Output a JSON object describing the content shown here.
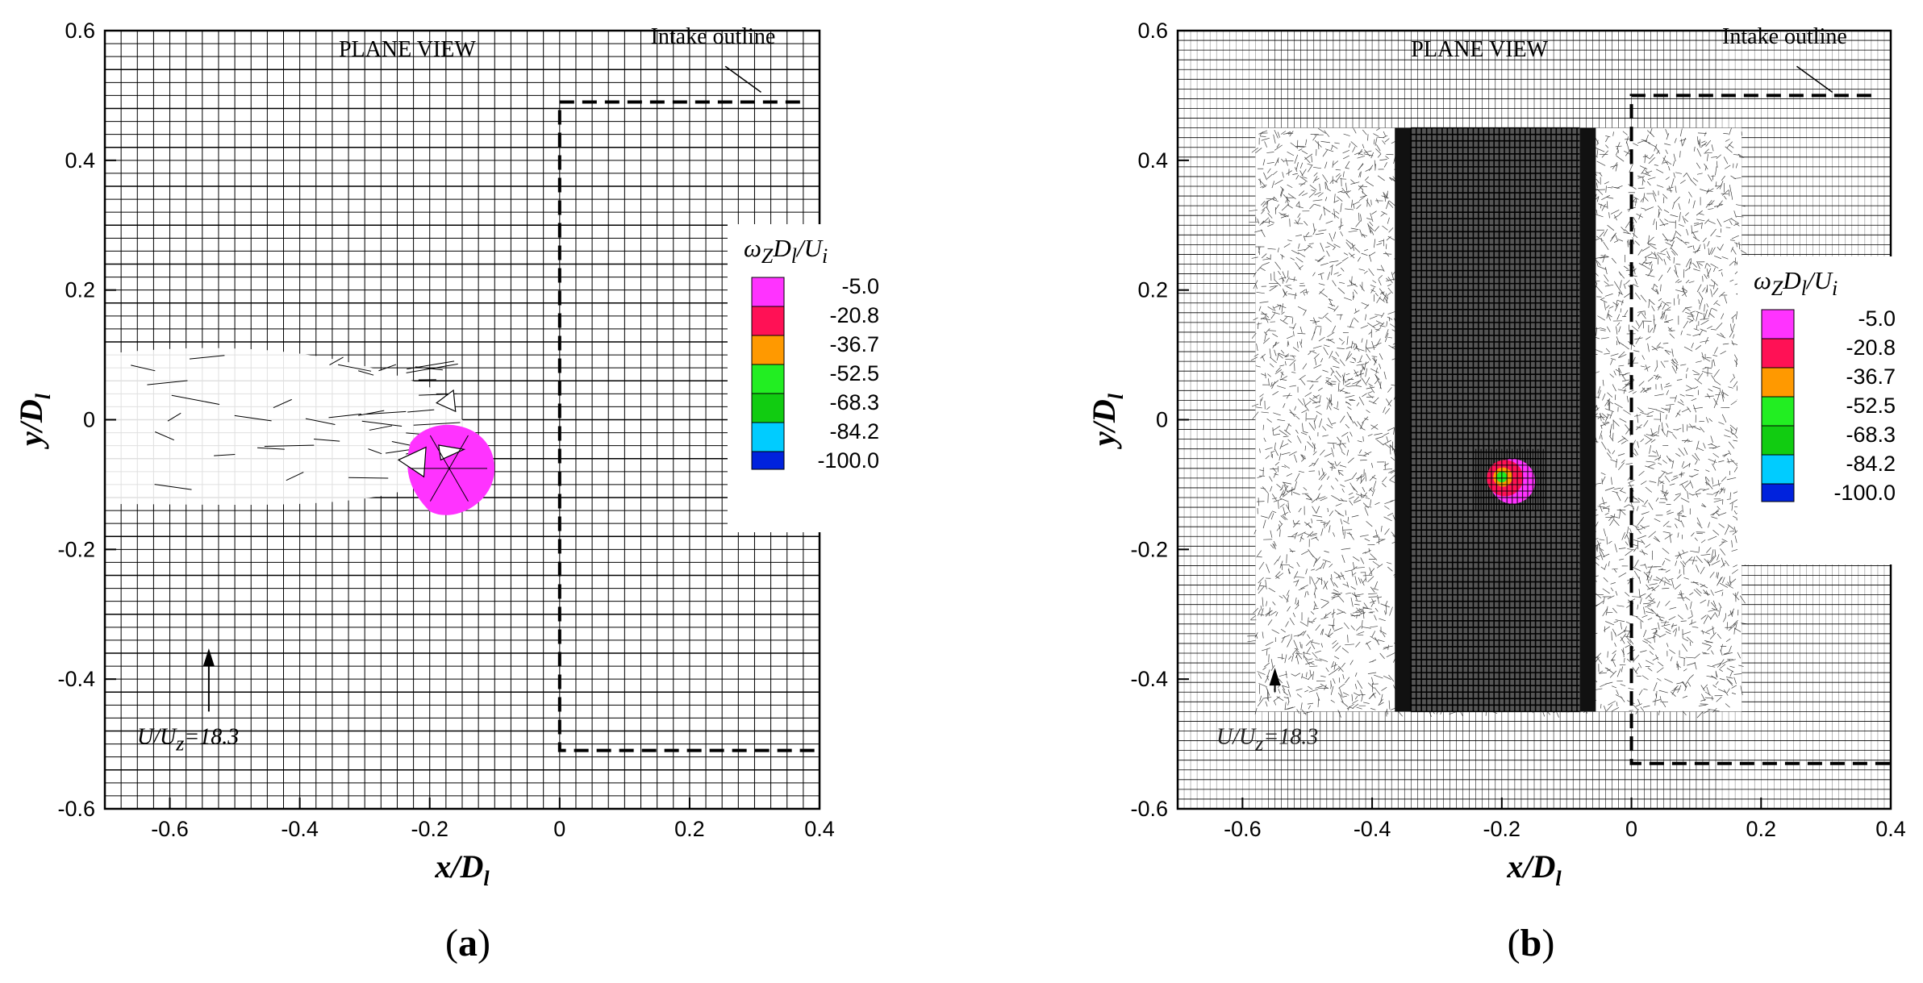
{
  "chart_data": [
    {
      "type": "contour",
      "panel_label": "(a)",
      "panel_label_parts": [
        "(",
        "a",
        ")"
      ],
      "title": "PLANE VIEW",
      "xlabel": "x/D",
      "xlabel_sub": "l",
      "ylabel": "y/D",
      "ylabel_sub": "l",
      "xlim": [
        -0.7,
        0.4
      ],
      "ylim": [
        -0.6,
        0.6
      ],
      "xticks": [
        -0.6,
        -0.4,
        -0.2,
        0,
        0.2,
        0.4
      ],
      "yticks": [
        -0.6,
        -0.4,
        -0.2,
        0,
        0.2,
        0.4,
        0.6
      ],
      "xtick_labels": [
        "-0.6",
        "-0.4",
        "-0.2",
        "0",
        "0.2",
        "0.4"
      ],
      "ytick_labels": [
        "-0.6",
        "-0.4",
        "-0.2",
        "0",
        "0.2",
        "0.4",
        "0.6"
      ],
      "annotations": {
        "intake_label": "Intake outline",
        "velocity_label": "U/U",
        "velocity_sub": "z",
        "velocity_value": "=18.3",
        "intake_outline": [
          [
            0.37,
            0.49
          ],
          [
            0.0,
            0.49
          ],
          [
            0.0,
            -0.51
          ],
          [
            0.4,
            -0.51
          ]
        ],
        "arrow_from": [
          -0.54,
          -0.45
        ],
        "arrow_to": [
          -0.54,
          -0.36
        ]
      },
      "vortex": {
        "center": [
          -0.17,
          -0.075
        ],
        "radius": 0.065,
        "level_color": "#ff33ff"
      },
      "legend": {
        "title": "ω",
        "title_sub": "Z",
        "title_rest": "D",
        "title_rest_sub": "l",
        "title_tail": "/U",
        "title_tail_sub": "i",
        "levels": [
          "-5.0",
          "-20.8",
          "-36.7",
          "-52.5",
          "-68.3",
          "-84.2",
          "-100.0"
        ],
        "colors": [
          "#ff33ff",
          "#ff1155",
          "#ff9900",
          "#22ee22",
          "#11cc11",
          "#00ccff",
          "#0022dd"
        ]
      },
      "mesh": "coarse"
    },
    {
      "type": "contour",
      "panel_label": "(b)",
      "panel_label_parts": [
        "(",
        "b",
        ")"
      ],
      "title": "PLANE VIEW",
      "xlabel": "x/D",
      "xlabel_sub": "l",
      "ylabel": "y/D",
      "ylabel_sub": "l",
      "xlim": [
        -0.7,
        0.4
      ],
      "ylim": [
        -0.6,
        0.6
      ],
      "xticks": [
        -0.6,
        -0.4,
        -0.2,
        0,
        0.2,
        0.4
      ],
      "yticks": [
        -0.6,
        -0.4,
        -0.2,
        0,
        0.2,
        0.4,
        0.6
      ],
      "xtick_labels": [
        "-0.6",
        "-0.4",
        "-0.2",
        "0",
        "0.2",
        "0.4"
      ],
      "ytick_labels": [
        "-0.6",
        "-0.4",
        "-0.2",
        "0",
        "0.2",
        "0.4",
        "0.6"
      ],
      "annotations": {
        "intake_label": "Intake outline",
        "velocity_label": "U/U",
        "velocity_sub": "z",
        "velocity_value": "=18.3",
        "intake_outline": [
          [
            0.37,
            0.5
          ],
          [
            0.0,
            0.5
          ],
          [
            0.0,
            -0.53
          ],
          [
            0.4,
            -0.53
          ]
        ],
        "arrow_from": [
          -0.55,
          -0.42
        ],
        "arrow_to": [
          -0.55,
          -0.39
        ]
      },
      "vortex": {
        "center": [
          -0.195,
          -0.09
        ],
        "radius": 0.033,
        "level_color": "#ff1155"
      },
      "legend": {
        "title": "ω",
        "title_sub": "Z",
        "title_rest": "D",
        "title_rest_sub": "l",
        "title_tail": "/U",
        "title_tail_sub": "i",
        "levels": [
          "-5.0",
          "-20.8",
          "-36.7",
          "-52.5",
          "-68.3",
          "-84.2",
          "-100.0"
        ],
        "colors": [
          "#ff33ff",
          "#ff1155",
          "#ff9900",
          "#22ee22",
          "#11cc11",
          "#00ccff",
          "#0022dd"
        ]
      },
      "mesh": "fine",
      "refined_region": {
        "x": [
          -0.58,
          0.17
        ],
        "y": [
          -0.45,
          0.45
        ]
      },
      "core_region": {
        "x": [
          -0.34,
          -0.08
        ],
        "y": [
          -0.45,
          0.45
        ]
      }
    }
  ]
}
